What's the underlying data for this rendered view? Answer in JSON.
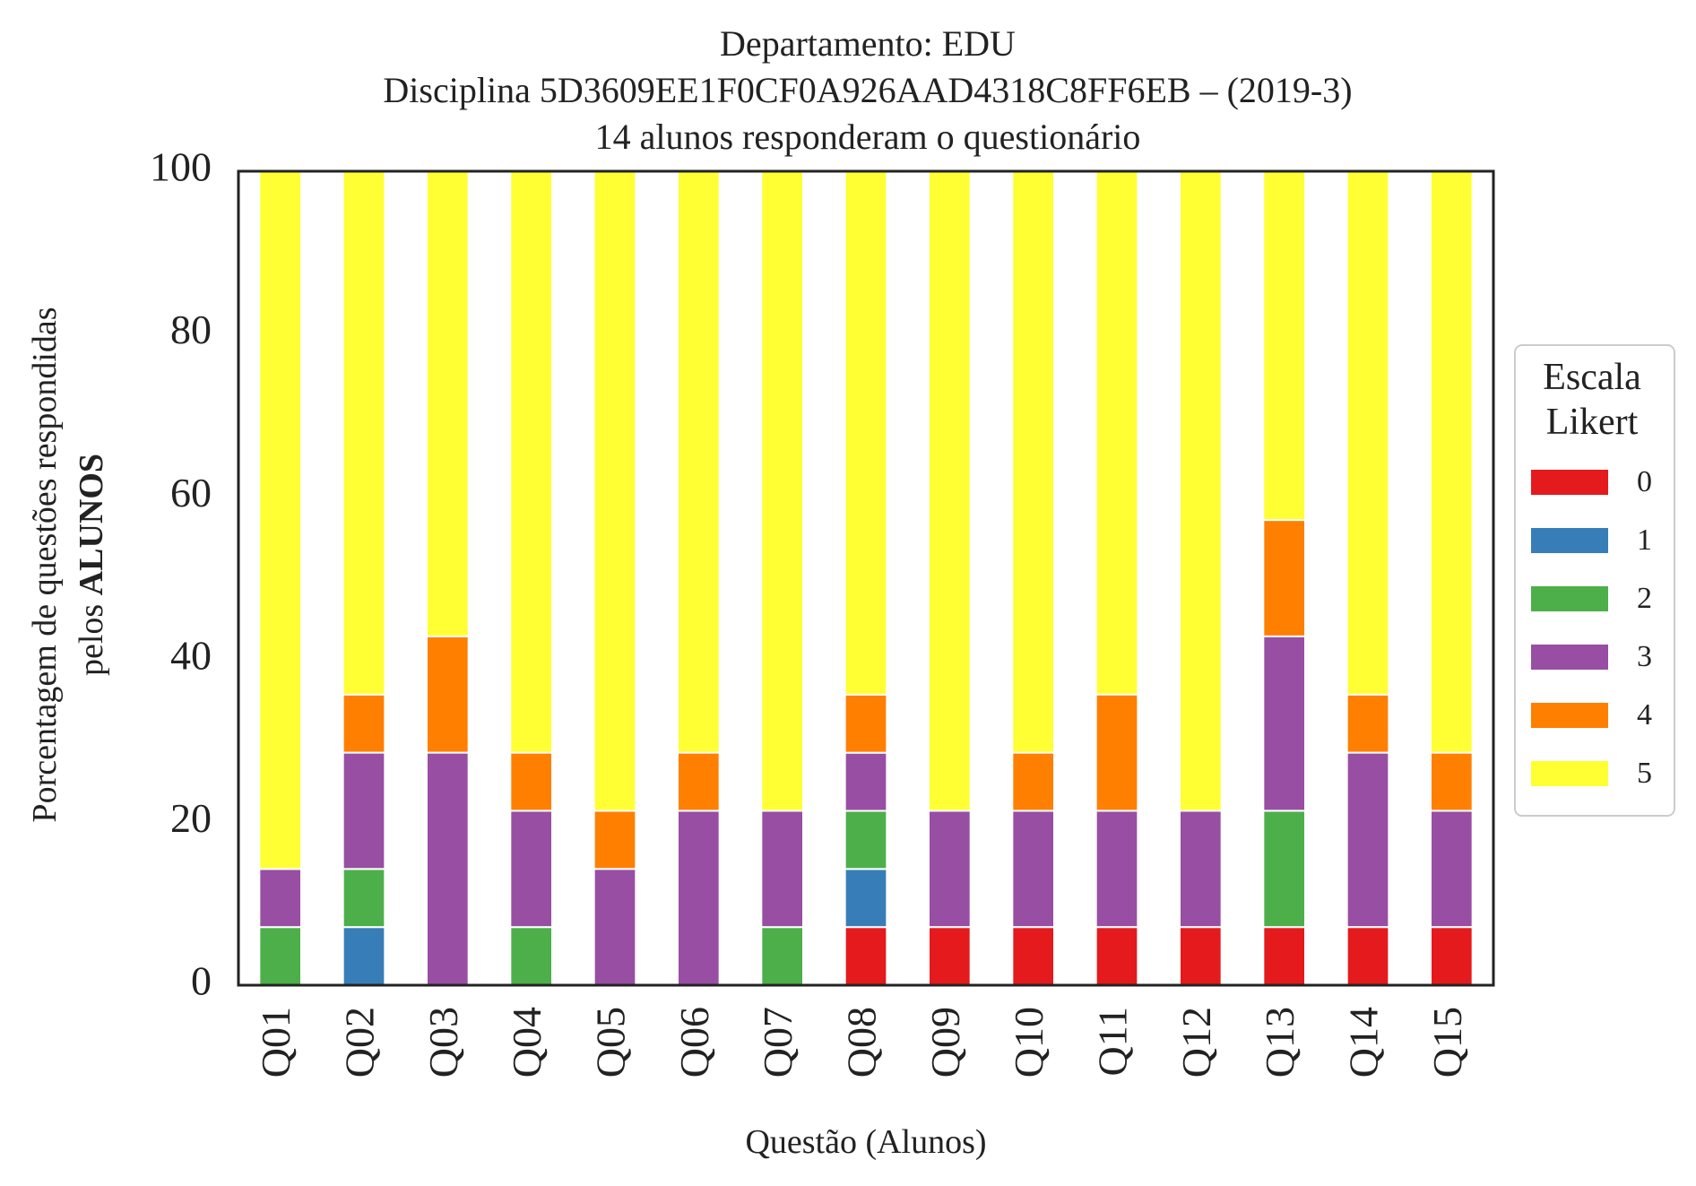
{
  "chart_data": {
    "type": "bar",
    "stacked": true,
    "title": {
      "line1": "Departamento: EDU",
      "line2": "Disciplina 5D3609EE1F0CF0A926AAD4318C8FF6EB – (2019-3)",
      "line3": "14 alunos responderam o questionário"
    },
    "ylabel": {
      "line1": "Porcentagem de questões respondidas",
      "line2_prefix": "pelos ",
      "line2_bold": "ALUNOS"
    },
    "xlabel": "Questão (Alunos)",
    "ylim": [
      0,
      100
    ],
    "yticks": [
      0,
      20,
      40,
      60,
      80,
      100
    ],
    "categories": [
      "Q01",
      "Q02",
      "Q03",
      "Q04",
      "Q05",
      "Q06",
      "Q07",
      "Q08",
      "Q09",
      "Q10",
      "Q11",
      "Q12",
      "Q13",
      "Q14",
      "Q15"
    ],
    "legend": {
      "title_line1": "Escala",
      "title_line2": "Likert",
      "position": "right"
    },
    "series": [
      {
        "name": "0",
        "color": "#e41a1c",
        "values": [
          0,
          0,
          0,
          0,
          0,
          0,
          0,
          7.14,
          7.14,
          7.14,
          7.14,
          7.14,
          7.14,
          7.14,
          7.14
        ]
      },
      {
        "name": "1",
        "color": "#377eb8",
        "values": [
          0,
          7.14,
          0,
          0,
          0,
          0,
          0,
          7.14,
          0,
          0,
          0,
          0,
          0,
          0,
          0
        ]
      },
      {
        "name": "2",
        "color": "#4daf4a",
        "values": [
          7.14,
          7.14,
          0,
          7.14,
          0,
          0,
          7.14,
          7.14,
          0,
          0,
          0,
          0,
          14.29,
          0,
          0
        ]
      },
      {
        "name": "3",
        "color": "#984ea3",
        "values": [
          7.14,
          14.29,
          28.57,
          14.29,
          14.29,
          21.43,
          14.29,
          7.14,
          14.29,
          14.29,
          14.29,
          14.29,
          21.43,
          21.43,
          14.29
        ]
      },
      {
        "name": "4",
        "color": "#ff7f00",
        "values": [
          0,
          7.14,
          14.29,
          7.14,
          7.14,
          7.14,
          0,
          7.14,
          0,
          7.14,
          14.29,
          0,
          14.29,
          7.14,
          7.14
        ]
      },
      {
        "name": "5",
        "color": "#ffff33",
        "values": [
          85.71,
          64.29,
          57.14,
          71.43,
          78.57,
          71.43,
          78.57,
          64.29,
          78.57,
          71.43,
          64.29,
          78.57,
          42.86,
          64.29,
          71.43
        ]
      }
    ]
  }
}
